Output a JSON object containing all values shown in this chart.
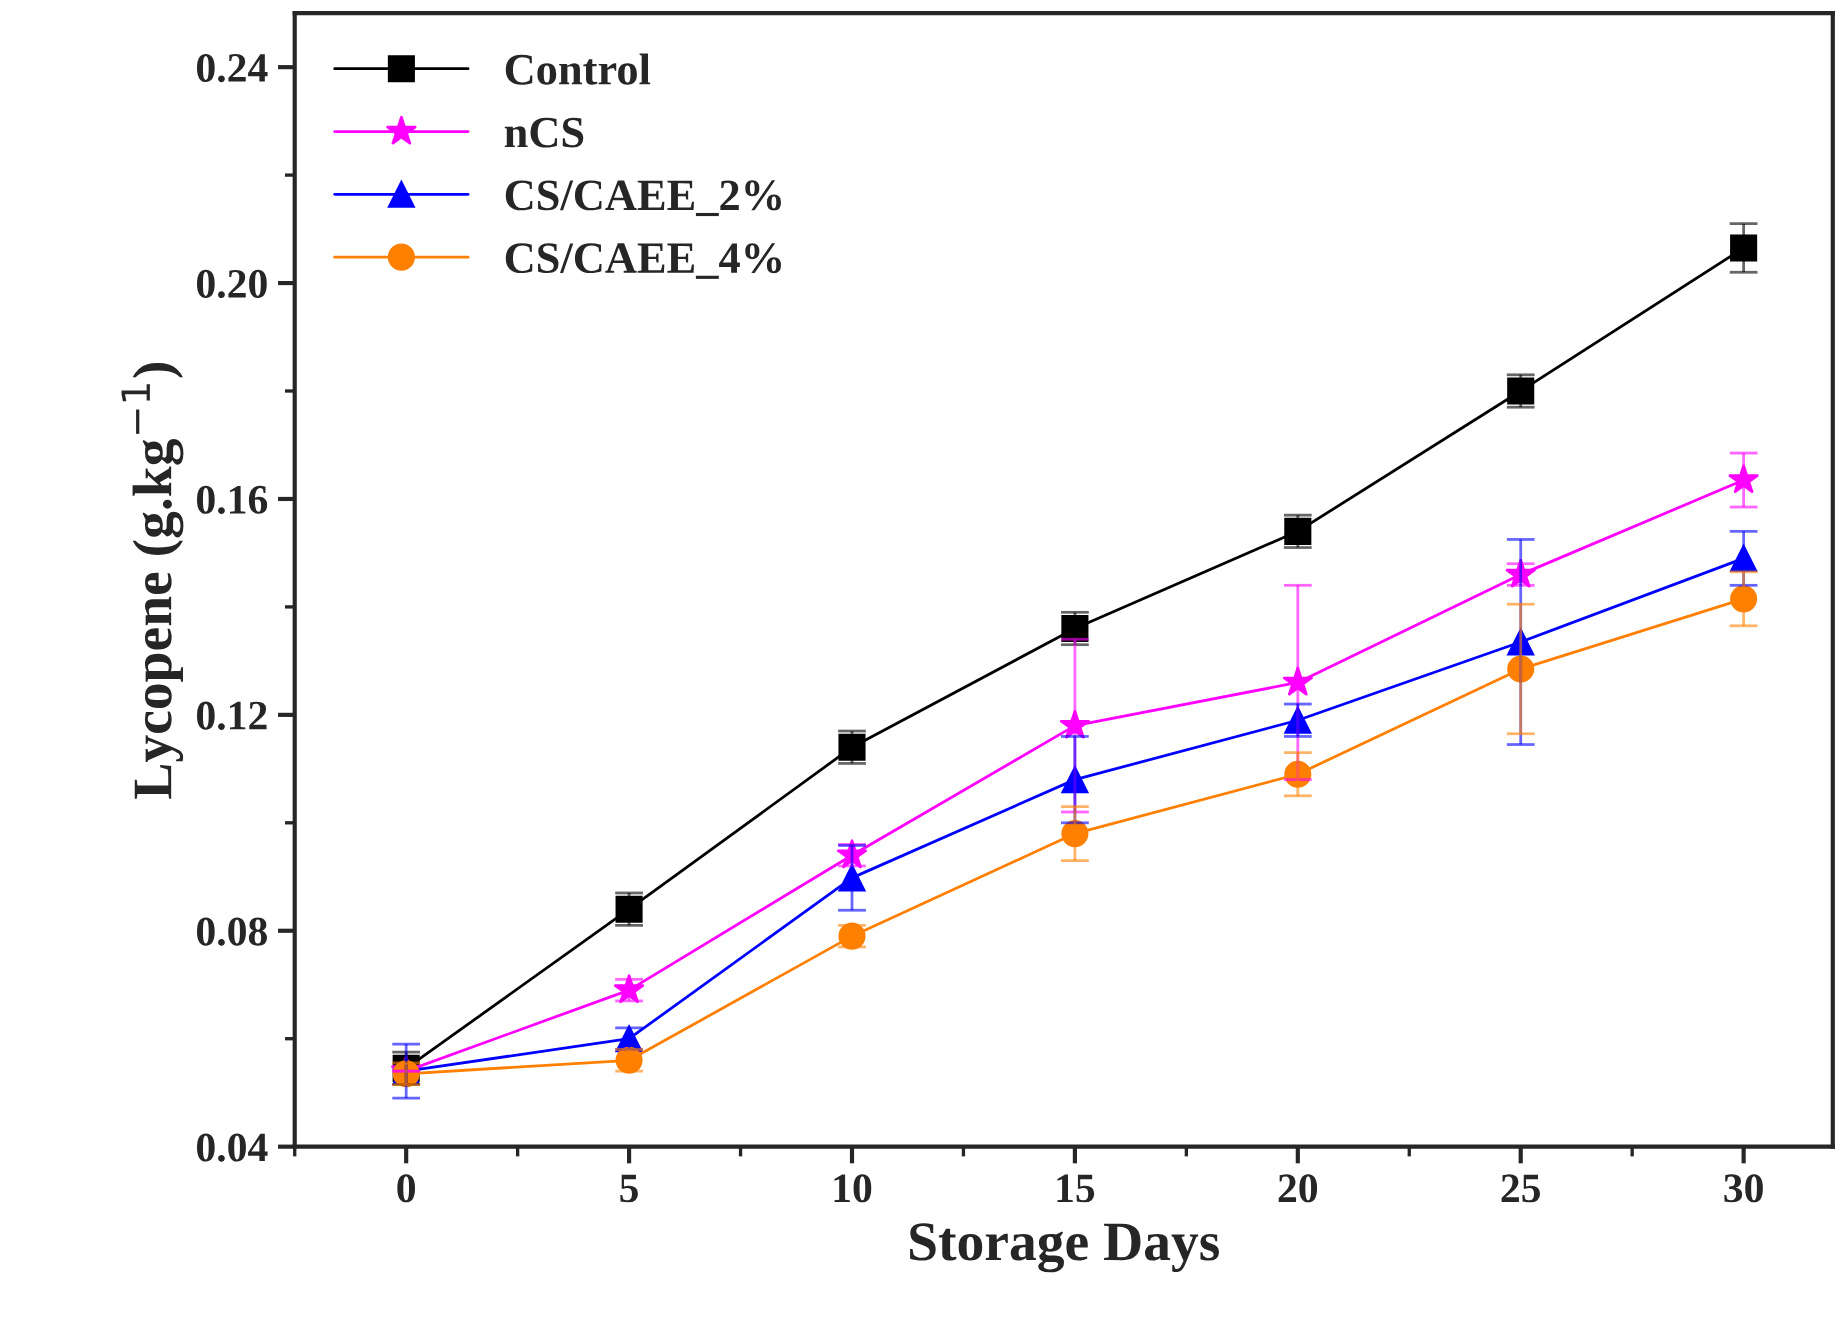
{
  "chart_data": {
    "type": "line",
    "xlabel": "Storage Days",
    "ylabel": "Lycopene (g.kg$^{−1}$)",
    "x": [
      0,
      5,
      10,
      15,
      20,
      25,
      30
    ],
    "xlim": [
      -2.5,
      32
    ],
    "xticks": [
      0,
      5,
      10,
      15,
      20,
      25,
      30
    ],
    "ylim": [
      0.04,
      0.25
    ],
    "yticks": [
      {
        "value": 0.04,
        "label": "0.04"
      },
      {
        "value": 0.08,
        "label": "0.08"
      },
      {
        "value": 0.12,
        "label": "0.12"
      },
      {
        "value": 0.16,
        "label": "0.16"
      },
      {
        "value": 0.2,
        "label": "0.20"
      },
      {
        "value": 0.24,
        "label": "0.24"
      }
    ],
    "grid": false,
    "legend": "top left",
    "line_style": "solid",
    "series": [
      {
        "name": "Control",
        "color": "#000000",
        "marker": "square",
        "values": [
          0.0545,
          0.084,
          0.114,
          0.136,
          0.154,
          0.18,
          0.2065
        ],
        "errors": [
          0.003,
          0.003,
          0.003,
          0.003,
          0.003,
          0.003,
          0.0045
        ]
      },
      {
        "name": "nCS",
        "color": "#ff00ff",
        "marker": "star",
        "values": [
          0.054,
          0.069,
          0.094,
          0.118,
          0.126,
          0.146,
          0.1635
        ],
        "errors": [
          null,
          0.002,
          0.002,
          0.016,
          0.018,
          0.002,
          0.005
        ]
      },
      {
        "name": "CS/CAEE_2%",
        "color": "#0000ff",
        "marker": "triangle",
        "values": [
          0.054,
          0.06,
          0.0898,
          0.108,
          0.119,
          0.1335,
          0.149
        ],
        "errors": [
          0.005,
          0.002,
          0.006,
          0.008,
          0.003,
          0.019,
          0.005
        ]
      },
      {
        "name": "CS/CAEE_4%",
        "color": "#ff8000",
        "marker": "circle",
        "values": [
          0.0535,
          0.056,
          0.079,
          0.098,
          0.109,
          0.1285,
          0.1415
        ],
        "errors": [
          0.002,
          0.002,
          0.002,
          0.005,
          0.004,
          0.012,
          0.005
        ]
      }
    ]
  }
}
